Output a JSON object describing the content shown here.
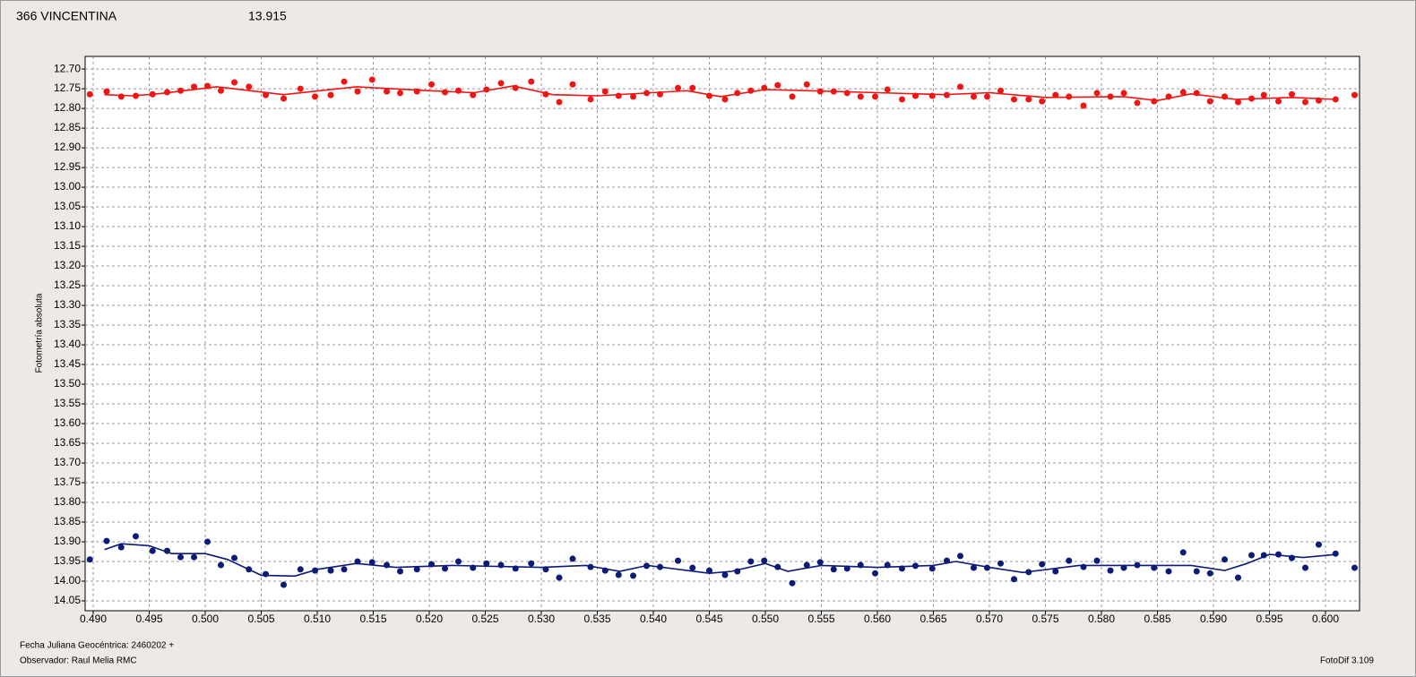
{
  "chart_data": {
    "type": "scatter",
    "ylabel": "Fotometría absoluta",
    "xlabel": "Fecha Juliana Geocéntrica: 2460202 +",
    "observer": "Observador: Raul Melia RMC",
    "software": "FotoDif 3.109",
    "grid": true,
    "y_inverted": true,
    "xlim": [
      0.48928,
      0.60304
    ],
    "ylim": [
      12.668,
      14.075
    ],
    "xticks": [
      {
        "value": 0.49,
        "label": "0.490"
      },
      0.495,
      {
        "value": 0.5,
        "label": "0.500"
      },
      0.505,
      {
        "value": 0.51,
        "label": "0.510"
      },
      0.515,
      {
        "value": 0.52,
        "label": "0.520"
      },
      0.525,
      {
        "value": 0.53,
        "label": "0.530"
      },
      0.535,
      {
        "value": 0.54,
        "label": "0.540"
      },
      0.545,
      {
        "value": 0.55,
        "label": "0.550"
      },
      0.555,
      {
        "value": 0.56,
        "label": "0.560"
      },
      0.565,
      {
        "value": 0.57,
        "label": "0.570"
      },
      0.575,
      {
        "value": 0.58,
        "label": "0.580"
      },
      0.585,
      {
        "value": 0.59,
        "label": "0.590"
      },
      0.595,
      {
        "value": 0.6,
        "label": "0.600"
      }
    ],
    "yticks": [
      {
        "value": 12.7,
        "label": "12.70"
      },
      12.75,
      {
        "value": 12.8,
        "label": "12.80"
      },
      12.85,
      {
        "value": 12.9,
        "label": "12.90"
      },
      12.95,
      {
        "value": 13.0,
        "label": "13.00"
      },
      13.05,
      {
        "value": 13.1,
        "label": "13.10"
      },
      13.15,
      {
        "value": 13.2,
        "label": "13.20"
      },
      13.25,
      {
        "value": 13.3,
        "label": "13.30"
      },
      13.35,
      {
        "value": 13.4,
        "label": "13.40"
      },
      13.45,
      {
        "value": 13.5,
        "label": "13.50"
      },
      13.55,
      {
        "value": 13.6,
        "label": "13.60"
      },
      13.65,
      {
        "value": 13.7,
        "label": "13.70"
      },
      13.75,
      {
        "value": 13.8,
        "label": "13.80"
      },
      13.85,
      {
        "value": 13.9,
        "label": "13.90"
      },
      13.95,
      {
        "value": 14.0,
        "label": "14.00"
      },
      14.05
    ],
    "x": [
      0.4897,
      0.4912,
      0.4925,
      0.4938,
      0.4953,
      0.4966,
      0.4978,
      0.499,
      0.5002,
      0.5014,
      0.5026,
      0.5039,
      0.5054,
      0.507,
      0.5085,
      0.5098,
      0.5112,
      0.5124,
      0.5136,
      0.5149,
      0.5162,
      0.5174,
      0.5189,
      0.5202,
      0.5214,
      0.5226,
      0.5239,
      0.5251,
      0.5264,
      0.5277,
      0.5291,
      0.5304,
      0.5316,
      0.5328,
      0.5344,
      0.5357,
      0.5369,
      0.5382,
      0.5394,
      0.5406,
      0.5422,
      0.5435,
      0.545,
      0.5464,
      0.5475,
      0.5487,
      0.5499,
      0.5511,
      0.5524,
      0.5537,
      0.5549,
      0.5561,
      0.5573,
      0.5585,
      0.5598,
      0.5609,
      0.5622,
      0.5634,
      0.5649,
      0.5662,
      0.5674,
      0.5686,
      0.5698,
      0.571,
      0.5722,
      0.5735,
      0.5747,
      0.5759,
      0.5771,
      0.5784,
      0.5796,
      0.5808,
      0.582,
      0.5832,
      0.5847,
      0.586,
      0.5873,
      0.5885,
      0.5897,
      0.591,
      0.5922,
      0.5934,
      0.5945,
      0.5958,
      0.597,
      0.5982,
      0.5994,
      0.6009,
      0.6026
    ],
    "series": [
      {
        "name": "366 VINCENTINA",
        "color": "#f01414",
        "values": [
          12.764,
          12.757,
          12.77,
          12.768,
          12.764,
          12.759,
          12.755,
          12.745,
          12.743,
          12.755,
          12.734,
          12.745,
          12.766,
          12.775,
          12.75,
          12.77,
          12.766,
          12.732,
          12.757,
          12.727,
          12.757,
          12.761,
          12.757,
          12.739,
          12.759,
          12.755,
          12.766,
          12.752,
          12.736,
          12.748,
          12.732,
          12.764,
          12.784,
          12.739,
          12.777,
          12.757,
          12.768,
          12.77,
          12.761,
          12.764,
          12.748,
          12.748,
          12.768,
          12.777,
          12.761,
          12.755,
          12.748,
          12.741,
          12.77,
          12.739,
          12.757,
          12.757,
          12.761,
          12.77,
          12.77,
          12.752,
          12.777,
          12.768,
          12.768,
          12.766,
          12.745,
          12.77,
          12.77,
          12.755,
          12.777,
          12.777,
          12.782,
          12.766,
          12.77,
          12.793,
          12.761,
          12.77,
          12.761,
          12.786,
          12.782,
          12.77,
          12.759,
          12.761,
          12.782,
          12.77,
          12.784,
          12.775,
          12.766,
          12.782,
          12.764,
          12.784,
          12.78,
          12.777,
          12.766
        ]
      },
      {
        "name": "13.915",
        "color": "#0c1a78",
        "values": [
          13.945,
          13.898,
          13.914,
          13.886,
          13.923,
          13.923,
          13.939,
          13.939,
          13.9,
          13.959,
          13.941,
          13.97,
          13.982,
          14.009,
          13.97,
          13.973,
          13.973,
          13.97,
          13.95,
          13.952,
          13.959,
          13.975,
          13.97,
          13.957,
          13.968,
          13.95,
          13.966,
          13.955,
          13.959,
          13.968,
          13.955,
          13.97,
          13.991,
          13.943,
          13.964,
          13.973,
          13.984,
          13.986,
          13.961,
          13.964,
          13.948,
          13.966,
          13.973,
          13.984,
          13.975,
          13.95,
          13.948,
          13.964,
          14.005,
          13.959,
          13.952,
          13.97,
          13.968,
          13.959,
          13.98,
          13.959,
          13.968,
          13.961,
          13.968,
          13.948,
          13.936,
          13.966,
          13.966,
          13.955,
          13.995,
          13.977,
          13.957,
          13.975,
          13.948,
          13.964,
          13.948,
          13.973,
          13.966,
          13.959,
          13.966,
          13.975,
          13.927,
          13.975,
          13.98,
          13.945,
          13.991,
          13.934,
          13.934,
          13.932,
          13.941,
          13.966,
          13.907,
          13.93,
          13.966
        ]
      }
    ],
    "fits": [
      {
        "color": "#f01414",
        "x": [
          0.491,
          0.4935,
          0.496,
          0.501,
          0.507,
          0.5135,
          0.52,
          0.524,
          0.5275,
          0.531,
          0.535,
          0.543,
          0.546,
          0.55,
          0.56,
          0.566,
          0.57,
          0.575,
          0.582,
          0.585,
          0.588,
          0.592,
          0.597,
          0.601
        ],
        "values": [
          12.765,
          12.768,
          12.762,
          12.745,
          12.765,
          12.745,
          12.755,
          12.76,
          12.743,
          12.765,
          12.768,
          12.755,
          12.77,
          12.752,
          12.76,
          12.765,
          12.76,
          12.772,
          12.77,
          12.78,
          12.763,
          12.777,
          12.772,
          12.777
        ]
      },
      {
        "color": "#0c1a78",
        "x": [
          0.491,
          0.4925,
          0.495,
          0.497,
          0.5,
          0.502,
          0.505,
          0.508,
          0.51,
          0.5135,
          0.517,
          0.522,
          0.53,
          0.534,
          0.537,
          0.5395,
          0.545,
          0.547,
          0.55,
          0.552,
          0.555,
          0.56,
          0.565,
          0.567,
          0.57,
          0.573,
          0.578,
          0.58,
          0.585,
          0.588,
          0.591,
          0.593,
          0.595,
          0.598,
          0.601
        ],
        "values": [
          13.92,
          13.905,
          13.91,
          13.93,
          13.93,
          13.945,
          13.985,
          13.987,
          13.97,
          13.955,
          13.965,
          13.96,
          13.965,
          13.96,
          13.975,
          13.96,
          13.98,
          13.975,
          13.955,
          13.975,
          13.96,
          13.965,
          13.96,
          13.95,
          13.965,
          13.978,
          13.96,
          13.96,
          13.96,
          13.96,
          13.973,
          13.955,
          13.932,
          13.94,
          13.932
        ]
      }
    ]
  }
}
